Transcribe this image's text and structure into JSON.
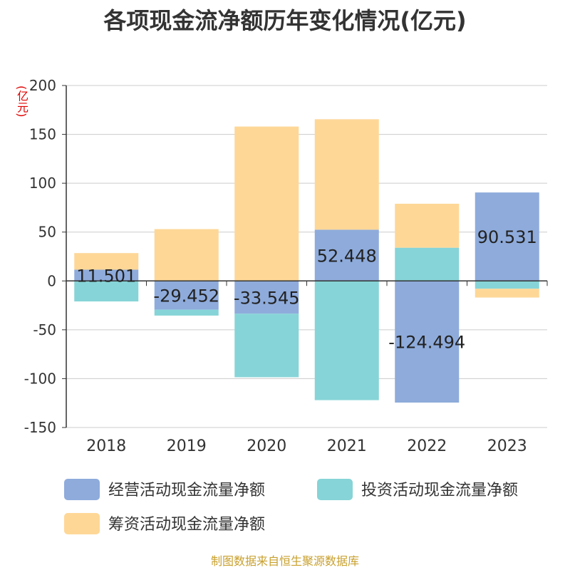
{
  "title": "各项现金流净额历年变化情况(亿元)",
  "unit_label": "(亿元)",
  "source": "制图数据来自恒生聚源数据库",
  "colors": {
    "operating": "#8eabdb",
    "investing": "#86d4d7",
    "financing": "#fed797",
    "axis": "#333333",
    "grid": "#cccccc",
    "text": "#333333"
  },
  "chart_data": {
    "type": "bar",
    "stacked": true,
    "categories": [
      "2018",
      "2019",
      "2020",
      "2021",
      "2022",
      "2023"
    ],
    "ylim": [
      -150,
      200
    ],
    "yticks": [
      -150,
      -100,
      -50,
      0,
      50,
      100,
      150,
      200
    ],
    "grid": true,
    "legend_position": "bottom",
    "series": [
      {
        "name": "经营活动现金流量净额",
        "values": [
          11.501,
          -29.452,
          -33.545,
          52.448,
          -124.494,
          90.531
        ],
        "data_labels": [
          "11.501",
          "-29.452",
          "-33.545",
          "52.448",
          "-124.494",
          "90.531"
        ]
      },
      {
        "name": "投资活动现金流量净额",
        "values": [
          -21.0,
          -6.0,
          -65.0,
          -122.0,
          34.0,
          -8.0
        ]
      },
      {
        "name": "筹资活动现金流量净额",
        "values": [
          17.0,
          53.0,
          158.0,
          113.0,
          45.0,
          -9.0
        ]
      }
    ]
  }
}
